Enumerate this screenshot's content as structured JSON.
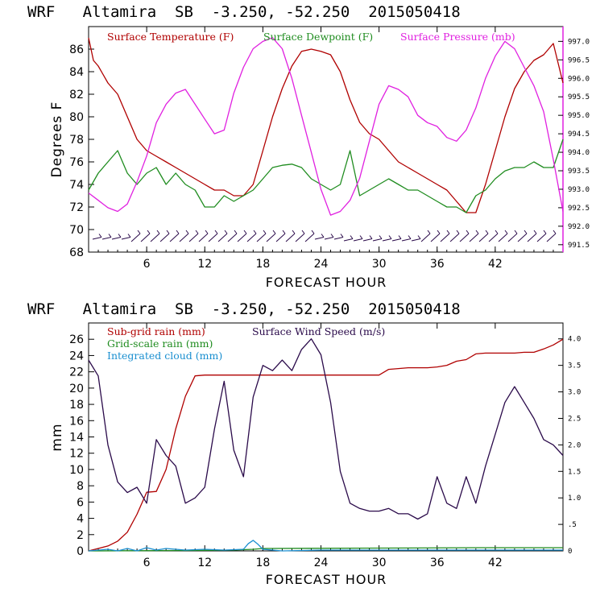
{
  "colors": {
    "red": "#b00000",
    "green": "#1f8c1f",
    "magenta": "#e020e0",
    "purple": "#2a0a4a",
    "blue": "#1a8fd0"
  },
  "chart_data": [
    {
      "type": "line",
      "title": "WRF   Altamira  SB  -3.250, -52.250  2015050418",
      "xlabel": "FORECAST HOUR",
      "ylabel": "Degrees F",
      "xlim": [
        0,
        49
      ],
      "ylim": [
        68,
        88
      ],
      "x_ticks": [
        "6",
        "12",
        "18",
        "24",
        "30",
        "36",
        "42"
      ],
      "y_ticks": [
        "68",
        "70",
        "72",
        "74",
        "76",
        "78",
        "80",
        "82",
        "84",
        "86"
      ],
      "y2_ticks": [
        "991.5",
        "992.0",
        "992.5",
        "993.0",
        "993.5",
        "994.0",
        "994.5",
        "995.0",
        "995.5",
        "996.0",
        "996.5",
        "997.0"
      ],
      "y2lim": [
        991.3,
        997.4
      ],
      "legend": [
        "Surface Temperature (F)",
        "Surface Dewpoint (F)",
        "Surface Pressure (mb)"
      ],
      "series": [
        {
          "name": "Surface Temperature (F)",
          "x": [
            0,
            0.5,
            1,
            2,
            3,
            4,
            5,
            6,
            7,
            8,
            9,
            10,
            11,
            12,
            13,
            14,
            15,
            16,
            17,
            18,
            19,
            20,
            21,
            22,
            23,
            24,
            25,
            26,
            27,
            28,
            29,
            30,
            31,
            32,
            33,
            34,
            35,
            36,
            37,
            38,
            39,
            40,
            41,
            42,
            43,
            44,
            45,
            46,
            47,
            48,
            49
          ],
          "values": [
            87,
            85,
            84.5,
            83,
            82,
            80,
            78,
            77,
            76.5,
            76,
            75.5,
            75,
            74.5,
            74,
            73.5,
            73.5,
            73,
            73,
            74,
            77,
            80,
            82.5,
            84.5,
            85.8,
            86,
            85.8,
            85.5,
            84,
            81.5,
            79.5,
            78.5,
            78,
            77,
            76,
            75.5,
            75,
            74.5,
            74,
            73.5,
            72.5,
            71.5,
            71.5,
            74,
            77,
            80,
            82.5,
            84,
            85,
            85.5,
            86.5,
            83
          ]
        },
        {
          "name": "Surface Dewpoint (F)",
          "x": [
            0,
            1,
            2,
            3,
            4,
            5,
            6,
            7,
            8,
            9,
            10,
            11,
            12,
            13,
            14,
            15,
            16,
            17,
            18,
            19,
            20,
            21,
            22,
            23,
            24,
            25,
            26,
            27,
            28,
            29,
            30,
            31,
            32,
            33,
            34,
            35,
            36,
            37,
            38,
            39,
            40,
            41,
            42,
            43,
            44,
            45,
            46,
            47,
            48,
            49
          ],
          "values": [
            73.5,
            75,
            76,
            77,
            75,
            74,
            75,
            75.5,
            74,
            75,
            74,
            73.5,
            72,
            72,
            73,
            72.5,
            73,
            73.5,
            74.5,
            75.5,
            75.7,
            75.8,
            75.5,
            74.5,
            74,
            73.5,
            74,
            77,
            73,
            73.5,
            74,
            74.5,
            74,
            73.5,
            73.5,
            73,
            72.5,
            72,
            72,
            71.5,
            73,
            73.5,
            74.5,
            75.2,
            75.5,
            75.5,
            76,
            75.5,
            75.5,
            78
          ]
        },
        {
          "name": "Surface Pressure (mb)",
          "x": [
            0,
            1,
            2,
            3,
            4,
            5,
            6,
            7,
            8,
            9,
            10,
            11,
            12,
            13,
            14,
            15,
            16,
            17,
            18,
            19,
            20,
            21,
            22,
            23,
            24,
            25,
            26,
            27,
            28,
            29,
            30,
            31,
            32,
            33,
            34,
            35,
            36,
            37,
            38,
            39,
            40,
            41,
            42,
            43,
            44,
            45,
            46,
            47,
            48,
            49
          ],
          "values": [
            992.9,
            992.7,
            992.5,
            992.4,
            992.6,
            993.2,
            993.9,
            994.8,
            995.3,
            995.6,
            995.7,
            995.3,
            994.9,
            994.5,
            994.6,
            995.6,
            996.3,
            996.8,
            997.0,
            997.1,
            996.8,
            996.0,
            995.0,
            994.0,
            993.0,
            992.3,
            992.4,
            992.7,
            993.3,
            994.3,
            995.3,
            995.8,
            995.7,
            995.5,
            995.0,
            994.8,
            994.7,
            994.4,
            994.3,
            994.6,
            995.2,
            996.0,
            996.6,
            997.0,
            996.8,
            996.3,
            995.8,
            995.1,
            993.8,
            992.4
          ]
        }
      ]
    },
    {
      "type": "line",
      "title": "WRF   Altamira  SB  -3.250, -52.250  2015050418",
      "xlabel": "FORECAST HOUR",
      "ylabel": "mm",
      "xlim": [
        0,
        49
      ],
      "ylim": [
        0,
        28
      ],
      "x_ticks": [
        "6",
        "12",
        "18",
        "24",
        "30",
        "36",
        "42"
      ],
      "y_ticks": [
        "0",
        "2",
        "4",
        "6",
        "8",
        "10",
        "12",
        "14",
        "16",
        "18",
        "20",
        "22",
        "24",
        "26"
      ],
      "y2_ticks": [
        "0",
        ".5",
        "1.0",
        "1.5",
        "2.0",
        "2.5",
        "3.0",
        "3.5",
        "4.0"
      ],
      "y2lim": [
        0,
        4.3
      ],
      "legend": [
        "Sub-grid rain (mm)",
        "Surface Wind Speed (m/s)",
        "Grid-scale rain (mm)",
        "Integrated cloud (mm)"
      ],
      "series": [
        {
          "name": "Sub-grid rain (mm)",
          "x": [
            0,
            1,
            2,
            3,
            4,
            5,
            6,
            7,
            8,
            9,
            10,
            11,
            12,
            13,
            14,
            15,
            16,
            17,
            18,
            19,
            20,
            21,
            22,
            23,
            24,
            25,
            26,
            27,
            28,
            29,
            30,
            31,
            32,
            33,
            34,
            35,
            36,
            37,
            38,
            39,
            40,
            41,
            42,
            43,
            44,
            45,
            46,
            47,
            48,
            49
          ],
          "values": [
            0,
            0.3,
            0.6,
            1.2,
            2.3,
            4.5,
            7.2,
            7.3,
            10,
            15,
            19,
            21.5,
            21.6,
            21.6,
            21.6,
            21.6,
            21.6,
            21.6,
            21.6,
            21.6,
            21.6,
            21.6,
            21.6,
            21.6,
            21.6,
            21.6,
            21.6,
            21.6,
            21.6,
            21.6,
            21.6,
            22.3,
            22.4,
            22.5,
            22.5,
            22.5,
            22.6,
            22.8,
            23.3,
            23.5,
            24.2,
            24.3,
            24.3,
            24.3,
            24.3,
            24.4,
            24.4,
            24.8,
            25.3,
            26
          ]
        },
        {
          "name": "Surface Wind Speed (m/s)",
          "x": [
            0,
            1,
            2,
            3,
            4,
            5,
            6,
            7,
            8,
            9,
            10,
            11,
            12,
            13,
            14,
            15,
            16,
            17,
            18,
            19,
            20,
            21,
            22,
            23,
            24,
            25,
            26,
            27,
            28,
            29,
            30,
            31,
            32,
            33,
            34,
            35,
            36,
            37,
            38,
            39,
            40,
            41,
            42,
            43,
            44,
            45,
            46,
            47,
            48,
            49
          ],
          "values": [
            3.6,
            3.3,
            2.0,
            1.3,
            1.1,
            1.2,
            0.9,
            2.1,
            1.8,
            1.6,
            0.9,
            1.0,
            1.2,
            2.3,
            3.2,
            1.9,
            1.4,
            2.9,
            3.5,
            3.4,
            3.6,
            3.4,
            3.8,
            4.0,
            3.7,
            2.8,
            1.5,
            0.9,
            0.8,
            0.75,
            0.75,
            0.8,
            0.7,
            0.7,
            0.6,
            0.7,
            1.4,
            0.9,
            0.8,
            1.4,
            0.9,
            1.6,
            2.2,
            2.8,
            3.1,
            2.8,
            2.5,
            2.1,
            2.0,
            1.8
          ]
        },
        {
          "name": "Grid-scale rain (mm)",
          "x": [
            0,
            10,
            15,
            17,
            18,
            30,
            40,
            49
          ],
          "values": [
            0,
            0.05,
            0.1,
            0.2,
            0.3,
            0.35,
            0.4,
            0.4
          ]
        },
        {
          "name": "Integrated cloud (mm)",
          "x": [
            0,
            2,
            3,
            4,
            5,
            6,
            7,
            8,
            10,
            12,
            14,
            16,
            16.5,
            17,
            17.5,
            18,
            19,
            20,
            24,
            30,
            36,
            42,
            49
          ],
          "values": [
            0,
            0.2,
            0,
            0.3,
            0,
            0.4,
            0.1,
            0.3,
            0.1,
            0.2,
            0.1,
            0.2,
            0.9,
            1.3,
            0.8,
            0.2,
            0.1,
            0,
            0.1,
            0.1,
            0.1,
            0.1,
            0.1
          ]
        }
      ]
    }
  ]
}
